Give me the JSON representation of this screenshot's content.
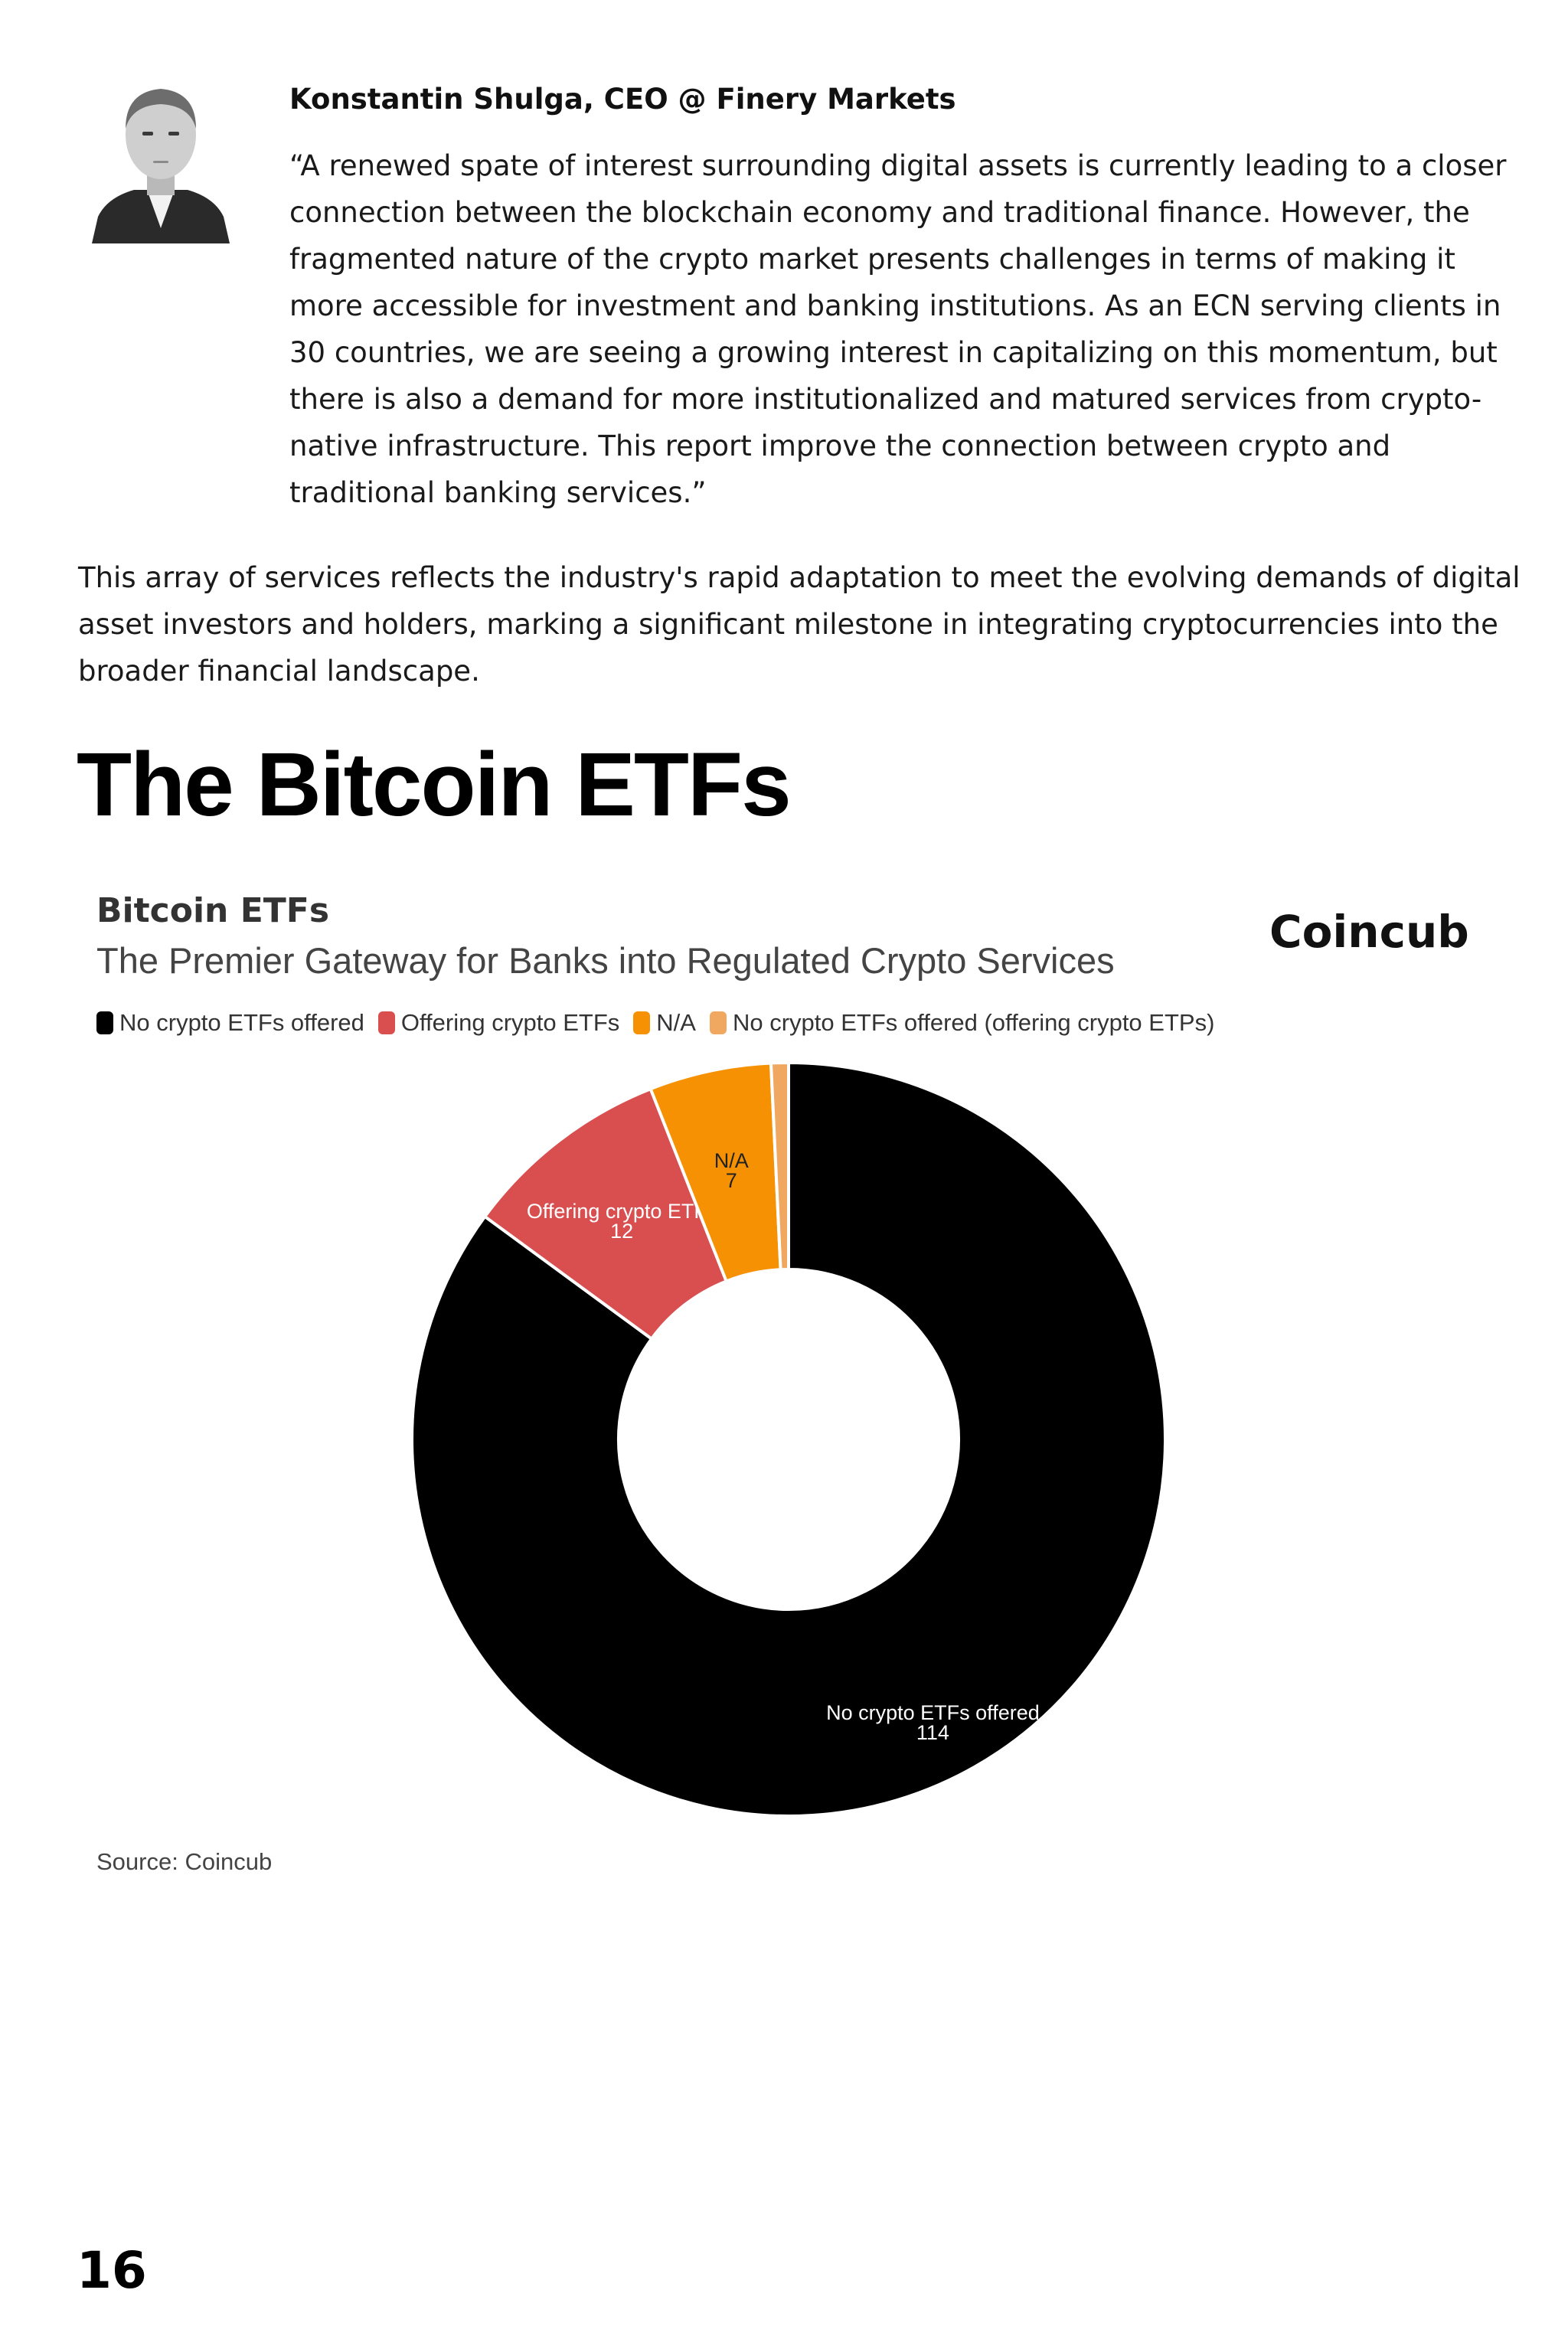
{
  "testimonial": {
    "author": "Konstantin Shulga, CEO @ Finery Markets",
    "quote": "“A renewed spate of interest surrounding digital assets is currently leading to a closer connection between the blockchain economy and traditional finance. However, the fragmented nature of the crypto market presents challenges in terms of making it more accessible for investment and banking institutions. As an ECN serving clients in 30 countries, we are seeing a growing interest in capitalizing on this momentum, but there is also a demand for more institutionalized and matured services from crypto-native infrastructure. This report improve the connection between crypto and traditional banking services.”"
  },
  "paragraph": "This array of services reflects the industry's rapid adaptation to meet the evolving demands of digital asset investors and holders, marking a significant milestone in integrating cryptocurrencies into the broader financial landscape.",
  "section_heading": "The Bitcoin ETFs",
  "brand": "Coincub",
  "source": "Source: Coincub",
  "page_number": "16",
  "chart_data": {
    "type": "pie",
    "title": "Bitcoin ETFs",
    "subtitle": "The Premier Gateway for Banks into Regulated Crypto Services",
    "donut": true,
    "legend_position": "top-left",
    "series": [
      {
        "name": "No crypto ETFs offered",
        "value": 114,
        "color": "#000000",
        "label_color": "#ffffff",
        "show_label": true
      },
      {
        "name": "Offering crypto ETFs",
        "value": 12,
        "color": "#d94f50",
        "label_color": "#ffffff",
        "show_label": true
      },
      {
        "name": "N/A",
        "value": 7,
        "color": "#f59102",
        "label_color": "#222222",
        "show_label": true
      },
      {
        "name": "No crypto ETFs offered (offering crypto ETPs)",
        "value": 1,
        "color": "#f0a860",
        "label_color": "#222222",
        "show_label": false
      }
    ]
  }
}
